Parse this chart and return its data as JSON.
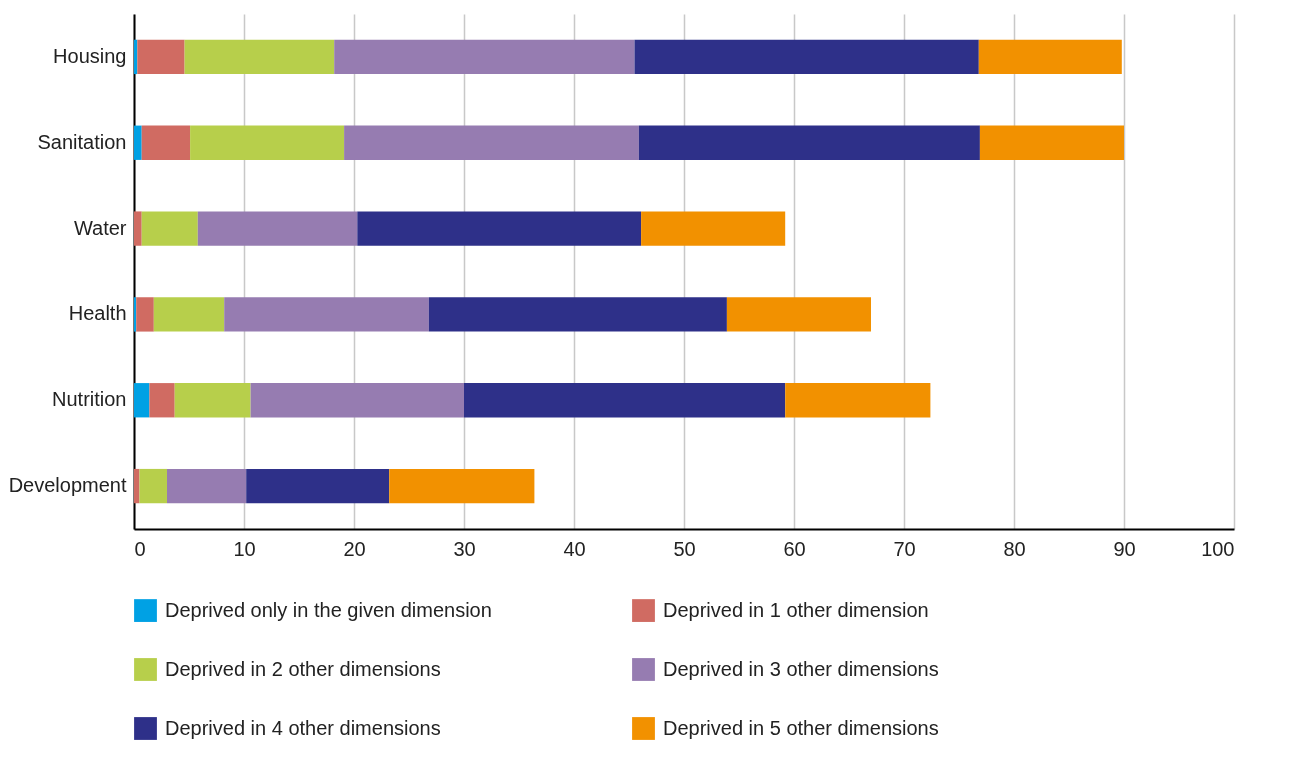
{
  "chart_data": {
    "type": "bar",
    "orientation": "horizontal",
    "stacked": true,
    "categories": [
      "Housing",
      "Sanitation",
      "Water",
      "Health",
      "Nutrition",
      "Development"
    ],
    "series": [
      {
        "name": "Deprived only in the given dimension",
        "color": "#00a1e4",
        "values": [
          0.3,
          0.7,
          0,
          0.2,
          1.4,
          0
        ]
      },
      {
        "name": "Deprived in 1 other dimension",
        "color": "#d06b62",
        "values": [
          4.3,
          4.4,
          0.7,
          1.6,
          2.3,
          0.5
        ]
      },
      {
        "name": "Deprived in 2 other dimensions",
        "color": "#b7cf4b",
        "values": [
          13.6,
          14.0,
          5.1,
          6.4,
          6.9,
          2.5
        ]
      },
      {
        "name": "Deprived in 3 other dimensions",
        "color": "#967cb1",
        "values": [
          27.3,
          26.8,
          14.5,
          18.6,
          19.4,
          7.2
        ]
      },
      {
        "name": "Deprived in 4 other dimensions",
        "color": "#2e3089",
        "values": [
          31.3,
          31.0,
          25.8,
          27.1,
          29.2,
          13.0
        ]
      },
      {
        "name": "Deprived in 5 other dimensions",
        "color": "#f29100",
        "values": [
          13.0,
          13.1,
          13.1,
          13.1,
          13.2,
          13.2
        ]
      }
    ],
    "xlim": [
      0,
      100
    ],
    "xticks": [
      0,
      10,
      20,
      30,
      40,
      50,
      60,
      70,
      80,
      90,
      100
    ],
    "grid": "x",
    "legend": "bottom"
  }
}
